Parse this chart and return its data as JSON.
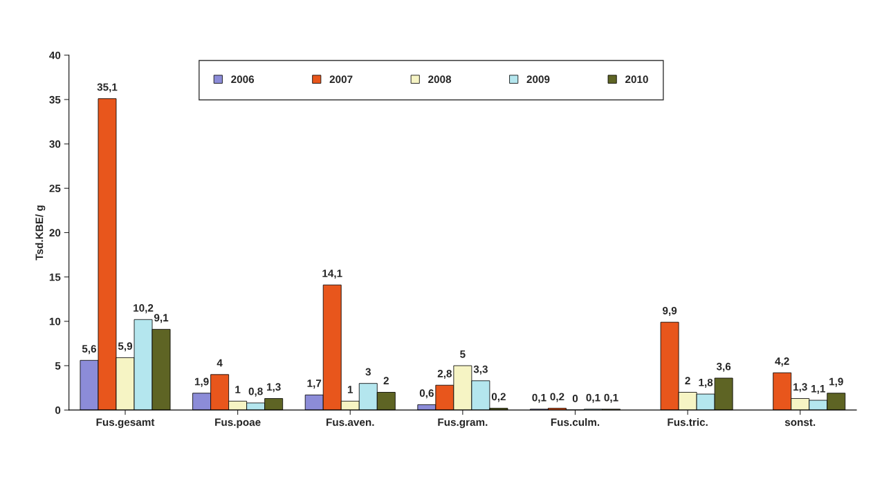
{
  "chart_data": {
    "type": "bar",
    "ylabel": "Tsd.KBE/ g",
    "categories": [
      "Fus.gesamt",
      "Fus.poae",
      "Fus.aven.",
      "Fus.gram.",
      "Fus.culm.",
      "Fus.tric.",
      "sonst."
    ],
    "series": [
      {
        "name": "2006",
        "color": "#8c8cd8",
        "values": [
          5.6,
          1.9,
          1.7,
          0.6,
          0.1,
          null,
          null
        ],
        "value_labels": [
          "5,6",
          "1,9",
          "1,7",
          "0,6",
          "0,1",
          null,
          null
        ]
      },
      {
        "name": "2007",
        "color": "#e8561c",
        "values": [
          35.1,
          4,
          14.1,
          2.8,
          0.2,
          9.9,
          4.2
        ],
        "value_labels": [
          "35,1",
          "4",
          "14,1",
          "2,8",
          "0,2",
          "9,9",
          "4,2"
        ]
      },
      {
        "name": "2008",
        "color": "#f6f4c4",
        "values": [
          5.9,
          1,
          1,
          5,
          0,
          2,
          1.3
        ],
        "value_labels": [
          "5,9",
          "1",
          "1",
          "5",
          "0",
          "2",
          "1,3"
        ]
      },
      {
        "name": "2009",
        "color": "#b4e6ee",
        "values": [
          10.2,
          0.8,
          3,
          3.3,
          0.1,
          1.8,
          1.1
        ],
        "value_labels": [
          "10,2",
          "0,8",
          "3",
          "3,3",
          "0,1",
          "1,8",
          "1,1"
        ]
      },
      {
        "name": "2010",
        "color": "#5e6424",
        "values": [
          9.1,
          1.3,
          2,
          0.2,
          0.1,
          3.6,
          1.9
        ],
        "value_labels": [
          "9,1",
          "1,3",
          "2",
          "0,2",
          "0,1",
          "3,6",
          "1,9"
        ]
      }
    ],
    "ylim": [
      0,
      40
    ],
    "yticks": [
      0,
      5,
      10,
      15,
      20,
      25,
      30,
      35,
      40
    ],
    "grid": false,
    "legend": "top"
  }
}
